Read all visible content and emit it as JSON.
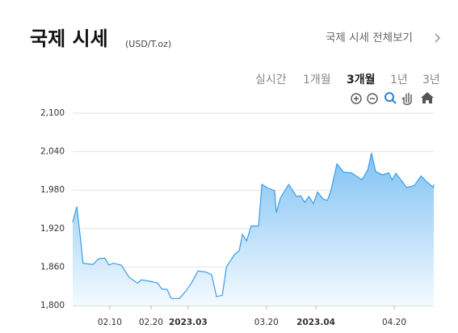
{
  "header": {
    "title": "국제 시세",
    "unit": "(USD/T.oz)",
    "link": "국제 시세 전체보기"
  },
  "tabs": {
    "items": [
      "실시간",
      "1개월",
      "3개월",
      "1년",
      "3년"
    ],
    "active_index": 2
  },
  "chart_data": {
    "type": "area",
    "x": [
      0,
      1,
      2,
      2.5,
      4.9,
      6.3,
      7.8,
      8.8,
      9.8,
      11.8,
      13.7,
      15.7,
      16.7,
      18.6,
      20.6,
      21.6,
      22.9,
      23.9,
      25.9,
      27.5,
      28.8,
      30.4,
      32.4,
      33.7,
      34.9,
      36.3,
      37.3,
      39.2,
      40.4,
      41.2,
      42.2,
      43.3,
      45.1,
      45.9,
      47.1,
      49,
      49.4,
      50.4,
      52.4,
      54.3,
      55.3,
      56.3,
      57.3,
      58.4,
      59.4,
      60.8,
      61.8,
      62.7,
      64.1,
      65.7,
      67.6,
      68.8,
      70.2,
      71.6,
      72.5,
      73.5,
      75.1,
      76.7,
      77.5,
      78.4,
      80,
      81,
      82.9,
      84.5,
      85.9,
      87.5,
      87.6
    ],
    "values": [
      1930,
      1954,
      1898,
      1866,
      1864,
      1873,
      1874,
      1863,
      1866,
      1863,
      1844,
      1835,
      1840,
      1838,
      1835,
      1826,
      1825,
      1811,
      1811,
      1823,
      1835,
      1854,
      1852,
      1848,
      1814,
      1816,
      1860,
      1879,
      1886,
      1911,
      1901,
      1924,
      1924,
      1989,
      1984,
      1979,
      1945,
      1968,
      1989,
      1970,
      1971,
      1961,
      1970,
      1959,
      1977,
      1966,
      1964,
      1980,
      2021,
      2008,
      2007,
      2002,
      1996,
      2012,
      2038,
      2009,
      2004,
      2007,
      1996,
      2006,
      1993,
      1984,
      1987,
      2002,
      1993,
      1984,
      1989
    ],
    "color": "#3a9ee8",
    "xlim": [
      0,
      87.6
    ],
    "xticks": [
      {
        "value": 9,
        "label": "02.10"
      },
      {
        "value": 19,
        "label": "02.20"
      },
      {
        "value": 28,
        "label": "2023.03"
      },
      {
        "value": 47,
        "label": "03.20"
      },
      {
        "value": 59,
        "label": "2023.04"
      },
      {
        "value": 78,
        "label": "04.20"
      }
    ],
    "ylim": [
      1800,
      2100
    ],
    "yticks": [
      {
        "value": 1800,
        "label": "1,800"
      },
      {
        "value": 1860,
        "label": "1,860"
      },
      {
        "value": 1920,
        "label": "1,920"
      },
      {
        "value": 1980,
        "label": "1,980"
      },
      {
        "value": 2040,
        "label": "2,040"
      },
      {
        "value": 2100,
        "label": "2,100"
      }
    ],
    "grid": true
  }
}
